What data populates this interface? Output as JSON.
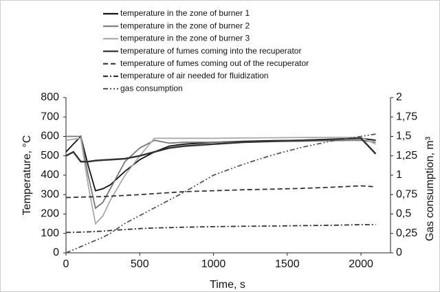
{
  "chart_data": {
    "type": "line",
    "xlabel": "Time, s",
    "ylabel": "Temperature, °C",
    "y2label": "Gas consumption, m³",
    "x": [
      0,
      50,
      100,
      150,
      200,
      250,
      300,
      400,
      500,
      600,
      700,
      800,
      1000,
      1200,
      1400,
      1600,
      1800,
      2000,
      2100
    ],
    "series": [
      {
        "name": "temperature in the zone of burner 1",
        "color": "#111111",
        "dash": "solid",
        "values": [
          520,
          560,
          600,
          450,
          320,
          330,
          350,
          420,
          480,
          520,
          550,
          560,
          570,
          575,
          578,
          580,
          585,
          590,
          580
        ]
      },
      {
        "name": "temperature in the zone of burner 2",
        "color": "#777777",
        "dash": "solid",
        "values": [
          600,
          600,
          600,
          400,
          230,
          260,
          330,
          470,
          540,
          580,
          565,
          570,
          570,
          572,
          574,
          575,
          578,
          580,
          570
        ]
      },
      {
        "name": "temperature in the zone of burner 3",
        "color": "#aaaaaa",
        "dash": "solid",
        "values": [
          580,
          585,
          590,
          350,
          150,
          190,
          270,
          400,
          500,
          590,
          590,
          590,
          590,
          592,
          593,
          594,
          595,
          595,
          560
        ]
      },
      {
        "name": "temperature of fumes coming into the recuperator",
        "color": "#333333",
        "dash": "solid",
        "values": [
          500,
          520,
          470,
          470,
          475,
          478,
          480,
          485,
          500,
          520,
          540,
          550,
          560,
          570,
          575,
          580,
          585,
          590,
          510
        ]
      },
      {
        "name": "temperature of fumes coming out of the recuperator",
        "color": "#333333",
        "dash": "dashed",
        "values": [
          285,
          286,
          287,
          288,
          289,
          290,
          292,
          296,
          300,
          305,
          310,
          315,
          320,
          325,
          328,
          332,
          338,
          345,
          340
        ]
      },
      {
        "name": "temperature of air needed for fluidization",
        "color": "#333333",
        "dash": "dashdot",
        "values": [
          105,
          106,
          107,
          108,
          110,
          112,
          115,
          120,
          125,
          128,
          130,
          132,
          135,
          137,
          138,
          140,
          142,
          145,
          145
        ]
      },
      {
        "name": "gas consumption",
        "color": "#555555",
        "dash": "dashdotdot",
        "axis": "y2",
        "values": [
          0,
          0.04,
          0.08,
          0.12,
          0.16,
          0.2,
          0.25,
          0.38,
          0.48,
          0.58,
          0.68,
          0.78,
          1.0,
          1.14,
          1.26,
          1.36,
          1.44,
          1.5,
          1.53
        ]
      }
    ],
    "xlim": [
      0,
      2200
    ],
    "xticks": [
      0,
      500,
      1000,
      1500,
      2000
    ],
    "ylim": [
      0,
      800
    ],
    "yticks": [
      0,
      100,
      200,
      300,
      400,
      500,
      600,
      700,
      800
    ],
    "y2lim": [
      0,
      2
    ],
    "y2ticks": [
      0,
      {
        "value": 0.25,
        "label": "0,25"
      },
      {
        "value": 0.5,
        "label": "0,5"
      },
      {
        "value": 0.75,
        "label": "0,75"
      },
      1,
      {
        "value": 1.25,
        "label": "1,25"
      },
      {
        "value": 1.5,
        "label": "1,5"
      },
      {
        "value": 1.75,
        "label": "1,75"
      },
      2
    ],
    "grid": false,
    "legend": "top"
  }
}
